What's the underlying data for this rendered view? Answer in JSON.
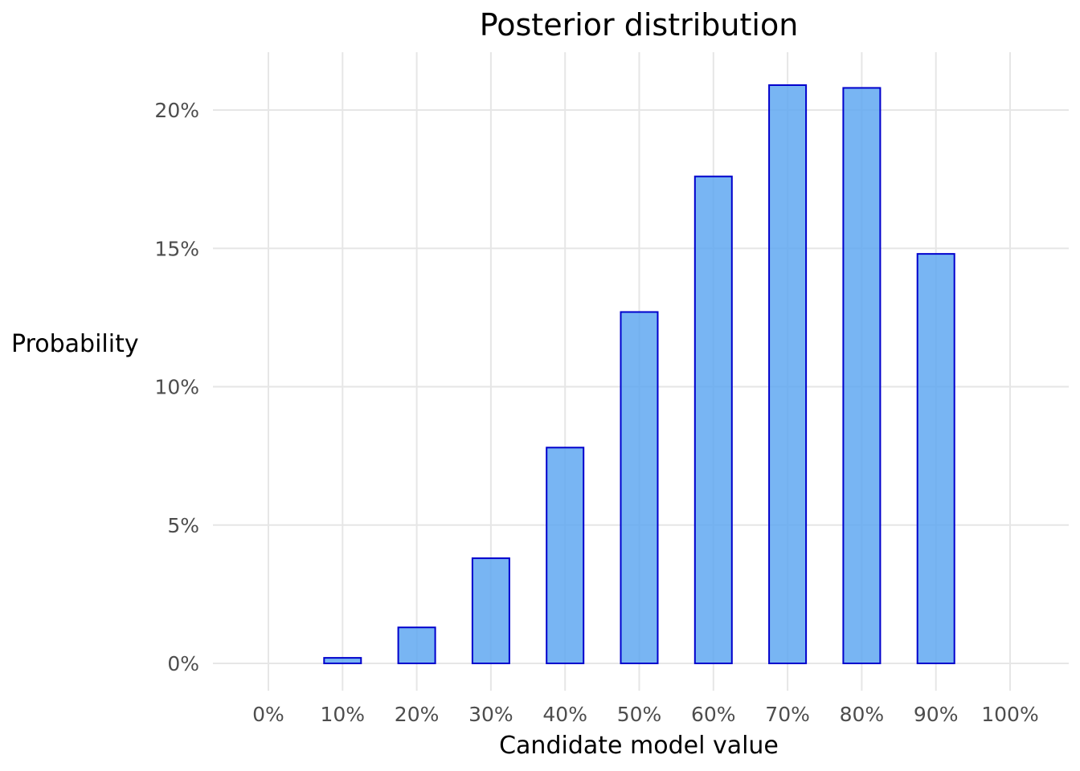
{
  "chart_data": {
    "type": "bar",
    "title": "Posterior distribution",
    "xlabel": "Candidate model value",
    "ylabel": "Probability",
    "categories": [
      "0%",
      "10%",
      "20%",
      "30%",
      "40%",
      "50%",
      "60%",
      "70%",
      "80%",
      "90%",
      "100%"
    ],
    "x": [
      0,
      0.1,
      0.2,
      0.3,
      0.4,
      0.5,
      0.6,
      0.7,
      0.8,
      0.9,
      1.0
    ],
    "values": [
      0.0,
      0.002,
      0.013,
      0.038,
      0.078,
      0.127,
      0.176,
      0.209,
      0.208,
      0.148,
      0.0
    ],
    "ylim": [
      0,
      0.22
    ],
    "yticks": [
      0,
      0.05,
      0.1,
      0.15,
      0.2
    ],
    "ytick_labels": [
      "0%",
      "5%",
      "10%",
      "15%",
      "20%"
    ],
    "grid": true,
    "colors": {
      "bar_fill": "#5aa5f0",
      "bar_stroke": "#0000cc",
      "grid": "#e6e6e6"
    }
  }
}
